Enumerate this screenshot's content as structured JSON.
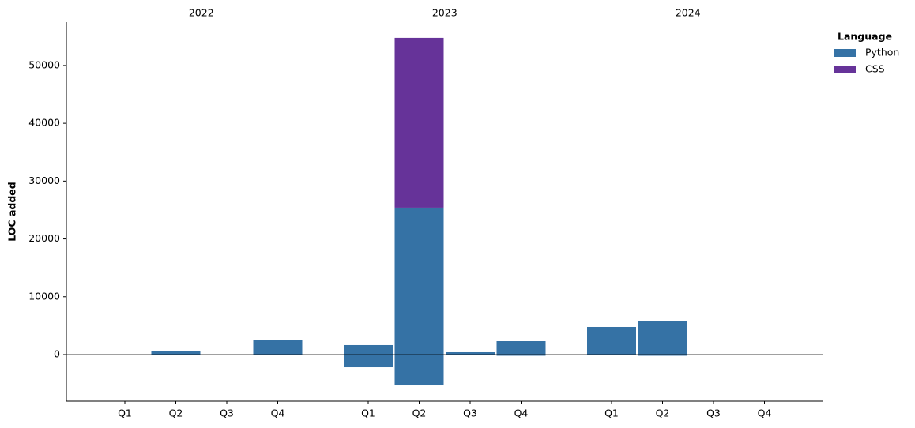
{
  "chart_data": {
    "type": "bar",
    "stacked": true,
    "y_label": "LOC added",
    "groups": [
      "2022",
      "2023",
      "2024"
    ],
    "categories": [
      "Q1",
      "Q2",
      "Q3",
      "Q4",
      "Q1",
      "Q2",
      "Q3",
      "Q4",
      "Q1",
      "Q2",
      "Q3",
      "Q4"
    ],
    "series": [
      {
        "name": "Python",
        "color": "#3572a5",
        "values": [
          0,
          680,
          0,
          2460,
          1640,
          25410,
          410,
          2320,
          4780,
          5870,
          0,
          0
        ],
        "removed": [
          0,
          0,
          0,
          0,
          -2190,
          -5330,
          0,
          -200,
          0,
          -200,
          0,
          0
        ]
      },
      {
        "name": "CSS",
        "color": "#663399",
        "values": [
          0,
          0,
          0,
          0,
          0,
          29370,
          0,
          0,
          0,
          0,
          0,
          0
        ]
      }
    ],
    "legend_title": "Language",
    "legend": "upper right",
    "ylim": [
      -8060,
      57500
    ],
    "yticks": [
      0,
      10000,
      20000,
      30000,
      40000,
      50000
    ]
  }
}
